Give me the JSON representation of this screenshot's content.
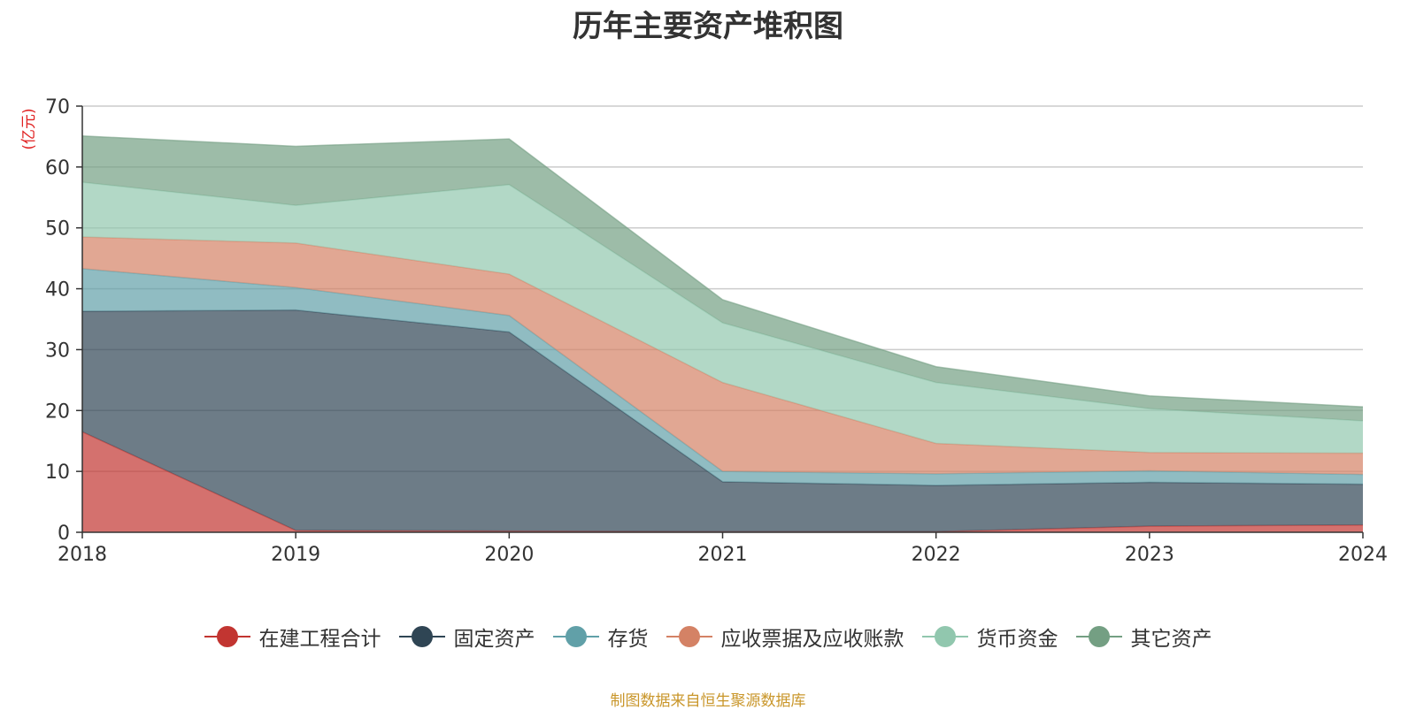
{
  "source_note": "制图数据来自恒生聚源数据库",
  "chart_data": {
    "type": "area",
    "stacked": true,
    "title": "历年主要资产堆积图",
    "ylabel": "(亿元)",
    "xlabel": "",
    "categories": [
      "2018",
      "2019",
      "2020",
      "2021",
      "2022",
      "2023",
      "2024"
    ],
    "ylim": [
      0,
      70
    ],
    "yticks": [
      0,
      10,
      20,
      30,
      40,
      50,
      60,
      70
    ],
    "grid": true,
    "legend_position": "bottom",
    "series": [
      {
        "name": "在建工程合计",
        "color": "#c23531",
        "values": [
          16.5,
          0.3,
          0.2,
          0.1,
          0.1,
          1.0,
          1.2
        ]
      },
      {
        "name": "固定资产",
        "color": "#2f4554",
        "values": [
          19.8,
          36.2,
          32.7,
          8.2,
          7.6,
          7.2,
          6.7
        ]
      },
      {
        "name": "存货",
        "color": "#61a0a8",
        "values": [
          7.0,
          3.7,
          2.7,
          1.7,
          1.9,
          1.9,
          1.6
        ]
      },
      {
        "name": "应收票据及应收账款",
        "color": "#d48265",
        "values": [
          5.2,
          7.3,
          6.8,
          14.6,
          5.0,
          3.0,
          3.5
        ]
      },
      {
        "name": "货币资金",
        "color": "#91c7ae",
        "values": [
          9.0,
          6.2,
          14.7,
          9.8,
          10.0,
          7.2,
          5.3
        ]
      },
      {
        "name": "其它资产",
        "color": "#749f83",
        "values": [
          7.6,
          9.7,
          7.5,
          3.8,
          2.6,
          2.1,
          2.3
        ]
      }
    ]
  }
}
